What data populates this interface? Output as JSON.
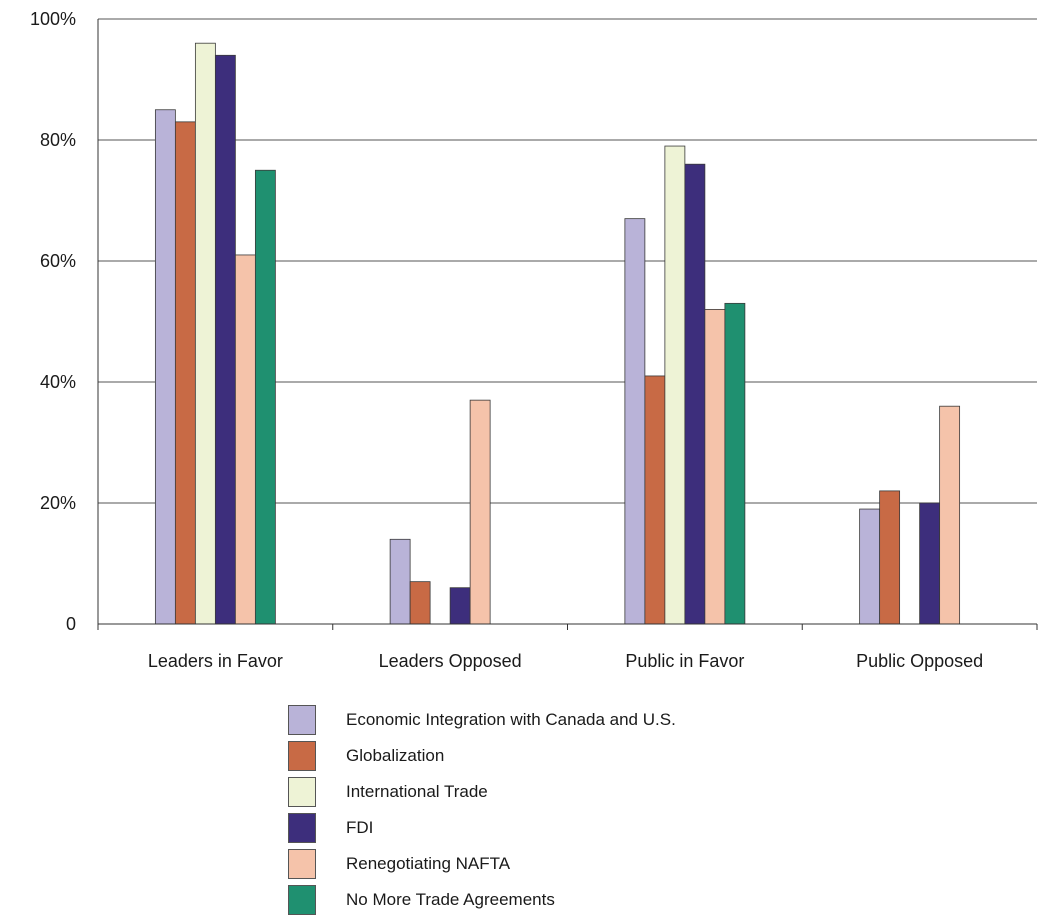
{
  "chart_data": {
    "type": "bar",
    "categories": [
      "Leaders in Favor",
      "Leaders Opposed",
      "Public in Favor",
      "Public Opposed"
    ],
    "series": [
      {
        "name": "Economic Integration with Canada and U.S.",
        "color": "#b9b3d8",
        "values": [
          85,
          14,
          67,
          19
        ]
      },
      {
        "name": "Globalization",
        "color": "#c86a45",
        "values": [
          83,
          7,
          41,
          22
        ]
      },
      {
        "name": "International Trade",
        "color": "#eef3d6",
        "values": [
          96,
          null,
          79,
          null
        ]
      },
      {
        "name": "FDI",
        "color": "#3d2e7c",
        "values": [
          94,
          6,
          76,
          20
        ]
      },
      {
        "name": "Renegotiating NAFTA",
        "color": "#f5c3aa",
        "values": [
          61,
          37,
          52,
          36
        ]
      },
      {
        "name": "No More Trade Agreements",
        "color": "#1f9070",
        "values": [
          75,
          null,
          53,
          null
        ]
      }
    ],
    "yticks": [
      "0",
      "20%",
      "40%",
      "60%",
      "80%",
      "100%"
    ],
    "ylim": [
      0,
      100
    ],
    "grid": true,
    "legend_position": "bottom"
  }
}
